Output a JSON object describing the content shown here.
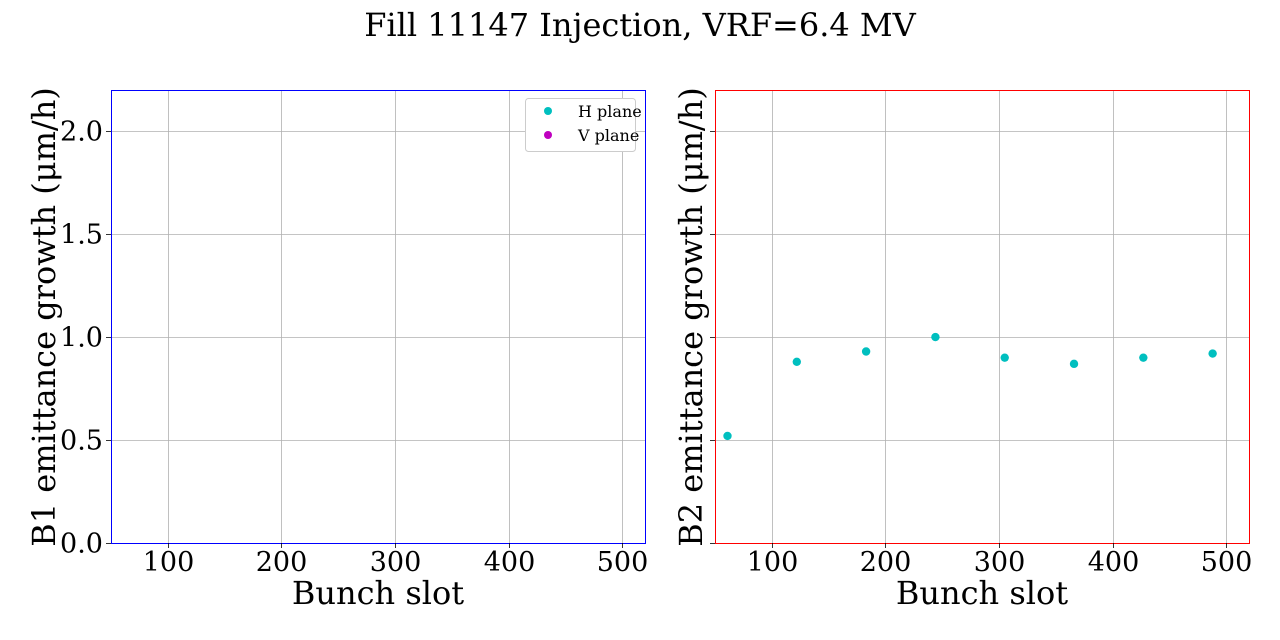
{
  "figure_title": "Fill 11147 Injection, VRF=6.4 MV",
  "chart_data": [
    {
      "type": "scatter",
      "panel": "left",
      "frame_color": "#0000ff",
      "xlabel": "Bunch slot",
      "ylabel": "B1 emittance growth (μm/h)",
      "xlim": [
        50,
        520
      ],
      "ylim": [
        0,
        2.2
      ],
      "xticks": [
        100,
        200,
        300,
        400,
        500
      ],
      "yticks": [
        0.0,
        0.5,
        1.0,
        1.5,
        2.0
      ],
      "ytick_labels": [
        "0.0",
        "0.5",
        "1.0",
        "1.5",
        "2.0"
      ],
      "grid": true,
      "legend": {
        "placement": "upper right",
        "entries": [
          {
            "label": "H plane",
            "color": "#00bfbf"
          },
          {
            "label": "V plane",
            "color": "#bf00bf"
          }
        ]
      },
      "series": [
        {
          "name": "H plane",
          "color": "#00bfbf",
          "x": [],
          "y": []
        },
        {
          "name": "V plane",
          "color": "#bf00bf",
          "x": [],
          "y": []
        }
      ]
    },
    {
      "type": "scatter",
      "panel": "right",
      "frame_color": "#ff0000",
      "xlabel": "Bunch slot",
      "ylabel": "B2 emittance growth (μm/h)",
      "xlim": [
        50,
        520
      ],
      "ylim": [
        0,
        2.2
      ],
      "xticks": [
        100,
        200,
        300,
        400,
        500
      ],
      "yticks": [
        0.0,
        0.5,
        1.0,
        1.5,
        2.0
      ],
      "ytick_labels": [],
      "grid": true,
      "series": [
        {
          "name": "H plane",
          "color": "#00bfbf",
          "x": [
            61,
            122,
            183,
            244,
            305,
            366,
            427,
            488
          ],
          "y": [
            0.52,
            0.88,
            0.93,
            1.0,
            0.9,
            0.87,
            0.9,
            0.92
          ]
        }
      ]
    }
  ]
}
